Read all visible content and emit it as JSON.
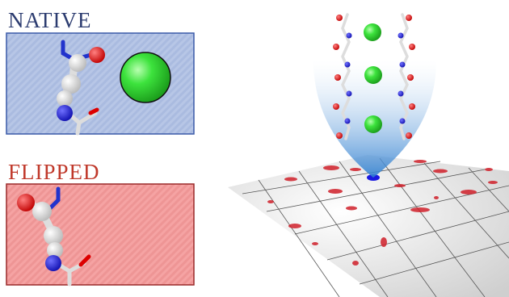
{
  "panels": [
    {
      "label": "NATIVE"
    },
    {
      "label": "FLIPPED"
    }
  ]
}
